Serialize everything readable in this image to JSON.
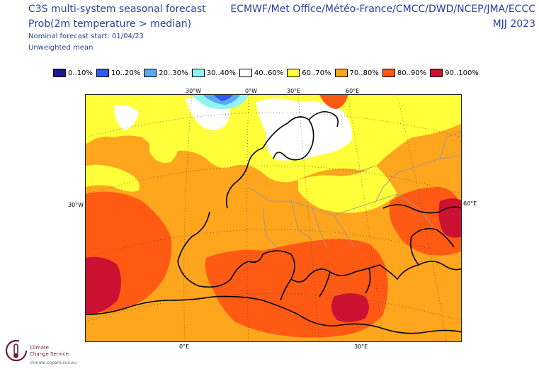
{
  "header": {
    "title": "C3S multi-system seasonal forecast",
    "subtitle": "Prob(2m temperature > median)",
    "start": "Nominal forecast start: 01/04/23",
    "mean": "Unweighted mean",
    "systems": "ECMWF/Met Office/Météo-France/CMCC/DWD/NCEP/JMA/ECCC",
    "period": "MJJ 2023"
  },
  "legend": [
    {
      "label": "0..10%",
      "color": "#1a1a8c"
    },
    {
      "label": "10..20%",
      "color": "#2f5cf0"
    },
    {
      "label": "20..30%",
      "color": "#5aa8f0"
    },
    {
      "label": "30..40%",
      "color": "#8ff4f4"
    },
    {
      "label": "40..60%",
      "color": "#ffffff"
    },
    {
      "label": "60..70%",
      "color": "#ffff3a"
    },
    {
      "label": "70..80%",
      "color": "#ffa51e"
    },
    {
      "label": "80..90%",
      "color": "#ff5a14"
    },
    {
      "label": "90..100%",
      "color": "#cc1133"
    }
  ],
  "map": {
    "top_labels": [
      "30°W",
      "0°W",
      "30°E",
      "60°E"
    ],
    "left_label": "30°W",
    "right_label": "60°E",
    "bottom_labels": [
      "0°E",
      "30°E"
    ]
  },
  "logo": {
    "line1": "Climate",
    "line2": "Change Service",
    "url": "climate.copernicus.eu"
  }
}
